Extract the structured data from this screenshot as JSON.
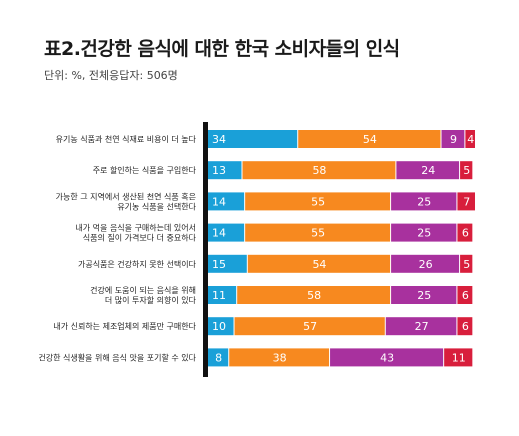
{
  "title": "표2.건강한 음식에 대한 한국 소비자들의 인식",
  "subtitle": "단위: %, 전체응답자: 506명",
  "chart_data": {
    "type": "bar",
    "stacked": true,
    "orientation": "horizontal",
    "categories": [
      [
        "유기농 식품과 천연 식재료 비용이 더 높다"
      ],
      [
        "주로 할인하는 식품을 구입한다"
      ],
      [
        "가능한 그 지역에서 생산된 천연 식품 혹은",
        "유기농 식품을 선택한다"
      ],
      [
        "내가 먹을 음식을 구매하는데 있어서",
        "식품의 질이 가격보다 더 중요하다"
      ],
      [
        "가공식품은 건강하지 못한 선택이다"
      ],
      [
        "건강에 도움이 되는 음식을 위해",
        "더 많이 투자할 의향이 있다"
      ],
      [
        "내가 신뢰하는 제조업체의 제품만 구매한다"
      ],
      [
        "건강한 식생활을 위해 음식 맛을 포기할 수 있다"
      ]
    ],
    "series": [
      {
        "color": "#1aa0d8",
        "values": [
          34,
          13,
          14,
          14,
          15,
          11,
          10,
          8
        ]
      },
      {
        "color": "#f7891f",
        "values": [
          54,
          58,
          55,
          55,
          54,
          58,
          57,
          38
        ]
      },
      {
        "color": "#a8319e",
        "values": [
          9,
          24,
          25,
          25,
          26,
          25,
          27,
          43
        ]
      },
      {
        "color": "#d81e3c",
        "values": [
          4,
          5,
          7,
          6,
          5,
          6,
          6,
          11
        ]
      }
    ],
    "xlim": [
      0,
      101
    ],
    "grid": false,
    "legend": "none"
  }
}
